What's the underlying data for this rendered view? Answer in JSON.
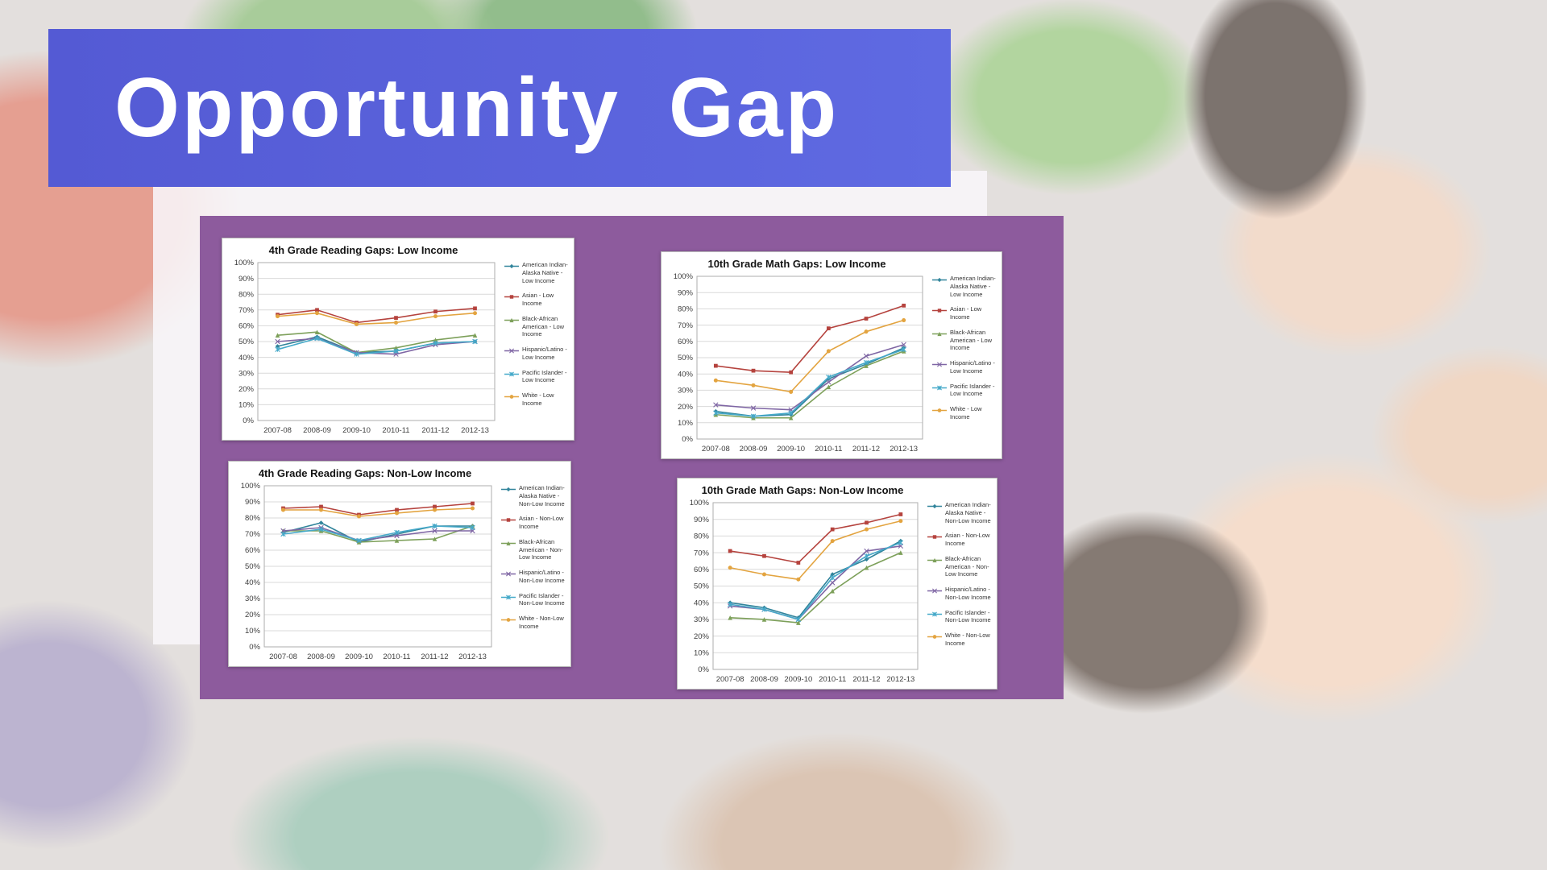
{
  "banner": {
    "title": "Opportunity Gap"
  },
  "colors": {
    "banner_left": "#545ad4",
    "banner_right": "#5f6ae2",
    "charts_panel": "#8d5b9d",
    "gridline": "#d9d9d9",
    "axis_text": "#404040"
  },
  "chart_data": [
    {
      "type": "line",
      "title": "4th Grade Reading Gaps: Low Income",
      "categories": [
        "2007-08",
        "2008-09",
        "2009-10",
        "2010-11",
        "2011-12",
        "2012-13"
      ],
      "ylim": [
        0,
        100
      ],
      "ytick_step": 10,
      "ytick_suffix": "%",
      "grid": true,
      "legend_position": "right",
      "series": [
        {
          "name": "American Indian-Alaska Native - Low Income",
          "color": "#31849B",
          "marker": "diamond",
          "values": [
            47,
            53,
            43,
            44,
            49,
            50
          ]
        },
        {
          "name": "Asian - Low Income",
          "color": "#B5433E",
          "marker": "square",
          "values": [
            67,
            70,
            62,
            65,
            69,
            71
          ]
        },
        {
          "name": "Black-African American - Low Income",
          "color": "#7DA05A",
          "marker": "triangle",
          "values": [
            54,
            56,
            43,
            46,
            51,
            54
          ]
        },
        {
          "name": "Hispanic/Latino - Low Income",
          "color": "#7F66A4",
          "marker": "x",
          "values": [
            50,
            52,
            43,
            42,
            48,
            50
          ]
        },
        {
          "name": "Pacific Islander - Low Income",
          "color": "#45A9C9",
          "marker": "star",
          "values": [
            45,
            52,
            42,
            44,
            49,
            50
          ]
        },
        {
          "name": "White - Low Income",
          "color": "#E3A440",
          "marker": "circle",
          "values": [
            66,
            68,
            61,
            62,
            66,
            68
          ]
        }
      ]
    },
    {
      "type": "line",
      "title": "10th Grade Math Gaps: Low Income",
      "categories": [
        "2007-08",
        "2008-09",
        "2009-10",
        "2010-11",
        "2011-12",
        "2012-13"
      ],
      "ylim": [
        0,
        100
      ],
      "ytick_step": 10,
      "ytick_suffix": "%",
      "grid": true,
      "legend_position": "right",
      "series": [
        {
          "name": "American Indian-Alaska Native - Low Income",
          "color": "#31849B",
          "marker": "diamond",
          "values": [
            17,
            14,
            15,
            37,
            46,
            56
          ]
        },
        {
          "name": "Asian - Low Income",
          "color": "#B5433E",
          "marker": "square",
          "values": [
            45,
            42,
            41,
            68,
            74,
            82
          ]
        },
        {
          "name": "Black-African American - Low Income",
          "color": "#7DA05A",
          "marker": "triangle",
          "values": [
            15,
            13,
            13,
            32,
            45,
            54
          ]
        },
        {
          "name": "Hispanic/Latino - Low Income",
          "color": "#7F66A4",
          "marker": "x",
          "values": [
            21,
            19,
            18,
            35,
            51,
            58
          ]
        },
        {
          "name": "Pacific Islander - Low Income",
          "color": "#45A9C9",
          "marker": "star",
          "values": [
            16,
            14,
            16,
            38,
            47,
            55
          ]
        },
        {
          "name": "White - Low Income",
          "color": "#E3A440",
          "marker": "circle",
          "values": [
            36,
            33,
            29,
            54,
            66,
            73
          ]
        }
      ]
    },
    {
      "type": "line",
      "title": "4th Grade Reading Gaps: Non-Low Income",
      "categories": [
        "2007-08",
        "2008-09",
        "2009-10",
        "2010-11",
        "2011-12",
        "2012-13"
      ],
      "ylim": [
        0,
        100
      ],
      "ytick_step": 10,
      "ytick_suffix": "%",
      "grid": true,
      "legend_position": "right",
      "series": [
        {
          "name": "American Indian-Alaska Native - Non-Low Income",
          "color": "#31849B",
          "marker": "diamond",
          "values": [
            71,
            77,
            65,
            70,
            75,
            75
          ]
        },
        {
          "name": "Asian - Non-Low Income",
          "color": "#B5433E",
          "marker": "square",
          "values": [
            86,
            87,
            82,
            85,
            87,
            89
          ]
        },
        {
          "name": "Black-African American - Non-Low Income",
          "color": "#7DA05A",
          "marker": "triangle",
          "values": [
            72,
            72,
            65,
            66,
            67,
            75
          ]
        },
        {
          "name": "Hispanic/Latino - Non-Low Income",
          "color": "#7F66A4",
          "marker": "x",
          "values": [
            72,
            74,
            66,
            69,
            72,
            72
          ]
        },
        {
          "name": "Pacific Islander - Non-Low Income",
          "color": "#45A9C9",
          "marker": "star",
          "values": [
            70,
            73,
            66,
            71,
            75,
            74
          ]
        },
        {
          "name": "White - Non-Low Income",
          "color": "#E3A440",
          "marker": "circle",
          "values": [
            85,
            85,
            81,
            83,
            85,
            86
          ]
        }
      ]
    },
    {
      "type": "line",
      "title": "10th Grade Math Gaps: Non-Low Income",
      "categories": [
        "2007-08",
        "2008-09",
        "2009-10",
        "2010-11",
        "2011-12",
        "2012-13"
      ],
      "ylim": [
        0,
        100
      ],
      "ytick_step": 10,
      "ytick_suffix": "%",
      "grid": true,
      "legend_position": "right",
      "series": [
        {
          "name": "American Indian-Alaska Native - Non-Low Income",
          "color": "#31849B",
          "marker": "diamond",
          "values": [
            40,
            37,
            31,
            57,
            66,
            77
          ]
        },
        {
          "name": "Asian - Non-Low Income",
          "color": "#B5433E",
          "marker": "square",
          "values": [
            71,
            68,
            64,
            84,
            88,
            93
          ]
        },
        {
          "name": "Black-African American - Non-Low Income",
          "color": "#7DA05A",
          "marker": "triangle",
          "values": [
            31,
            30,
            28,
            47,
            61,
            70
          ]
        },
        {
          "name": "Hispanic/Latino - Non-Low Income",
          "color": "#7F66A4",
          "marker": "x",
          "values": [
            38,
            36,
            30,
            52,
            71,
            74
          ]
        },
        {
          "name": "Pacific Islander - Non-Low Income",
          "color": "#45A9C9",
          "marker": "star",
          "values": [
            39,
            36,
            30,
            55,
            68,
            76
          ]
        },
        {
          "name": "White - Non-Low Income",
          "color": "#E3A440",
          "marker": "circle",
          "values": [
            61,
            57,
            54,
            77,
            84,
            89
          ]
        }
      ]
    }
  ]
}
